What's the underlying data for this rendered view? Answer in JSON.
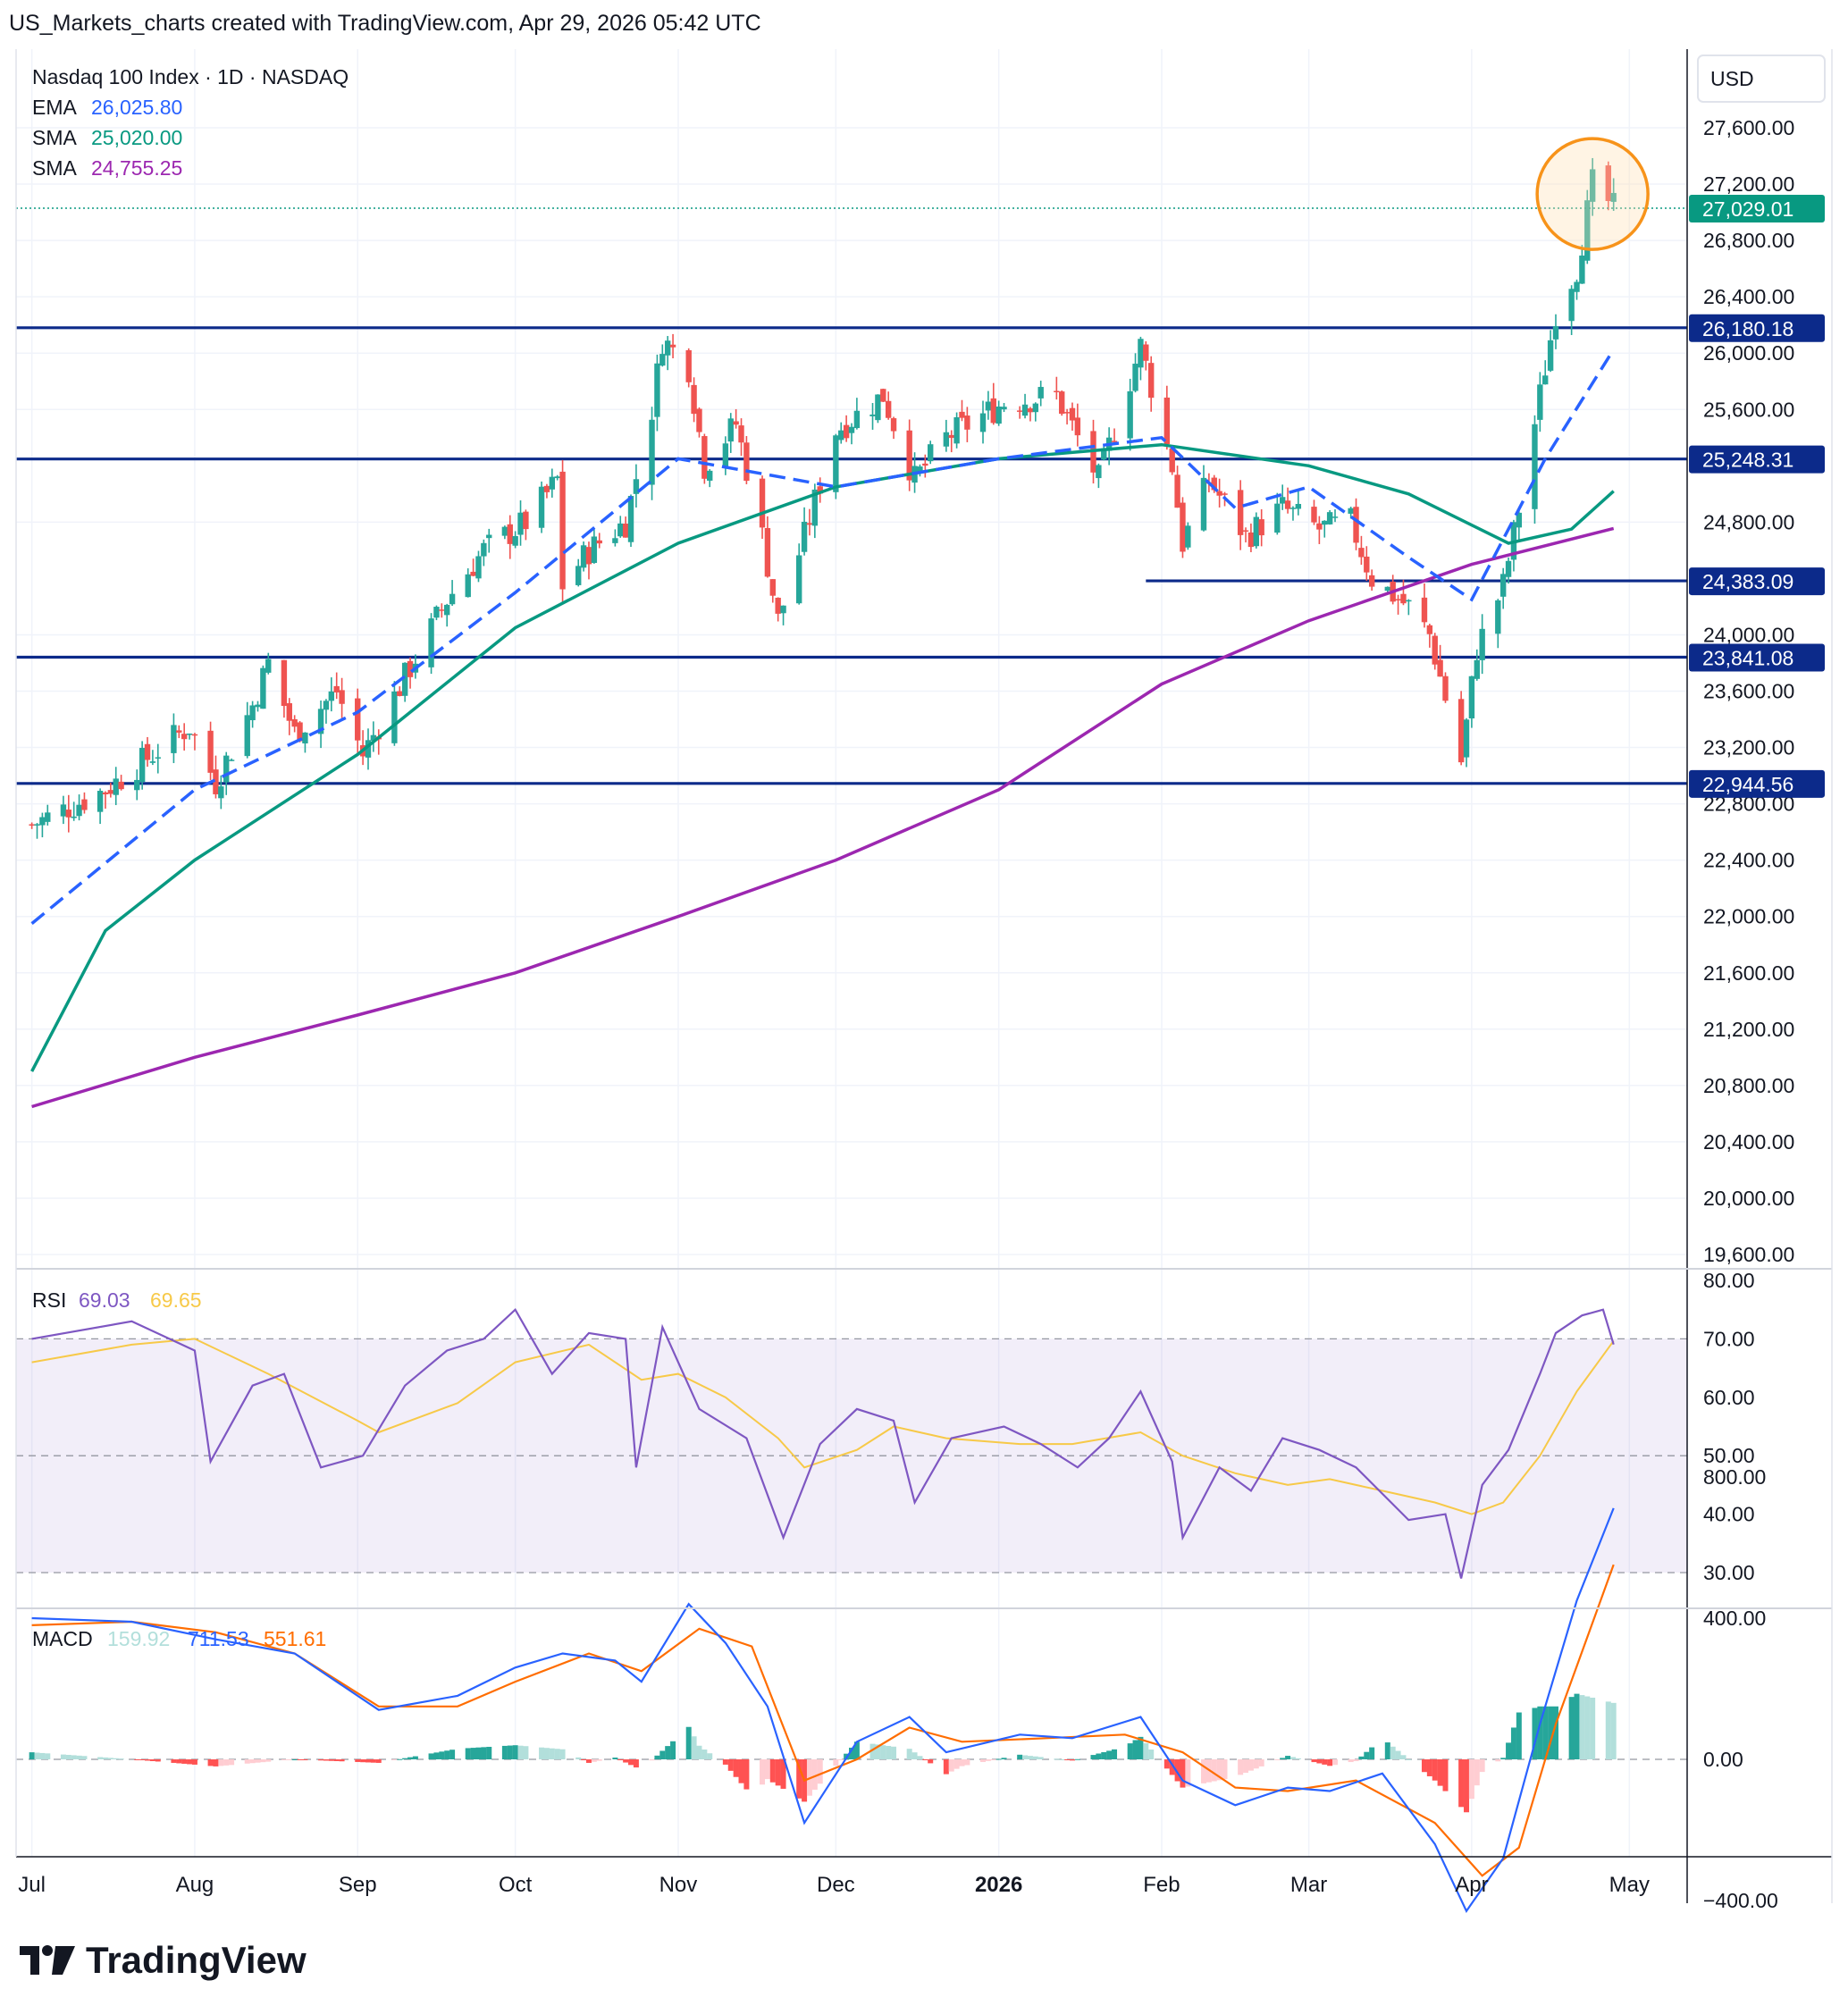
{
  "header": "US_Markets_charts created with TradingView.com, Apr 29, 2026 05:42 UTC",
  "footer": {
    "brand": "TradingView",
    "logo_icon": "tradingview-logo-icon"
  },
  "legend": {
    "title": "Nasdaq 100 Index · 1D · NASDAQ",
    "ema": {
      "label": "EMA",
      "value": "26,025.80",
      "color": "#2962ff"
    },
    "sma1": {
      "label": "SMA",
      "value": "25,020.00",
      "color": "#089981"
    },
    "sma2": {
      "label": "SMA",
      "value": "24,755.25",
      "color": "#9c27b0"
    }
  },
  "currency": "USD",
  "colors": {
    "up": "#26a69a",
    "down": "#ef5350",
    "level": "#0c2a8a",
    "circle": "#f7931a",
    "rsi": "#7e57c2",
    "rsi_ma": "#f7c948",
    "macd": "#2962ff",
    "signal": "#ff6d00"
  },
  "chart_data": [
    {
      "type": "candlestick",
      "title": "Nasdaq 100 Index · 1D · NASDAQ",
      "ylim": [
        19400,
        28000
      ],
      "yticks": [
        "27,600.00",
        "27,200.00",
        "26,800.00",
        "26,400.00",
        "26,000.00",
        "25,600.00",
        "24,800.00",
        "24,000.00",
        "23,600.00",
        "23,200.00",
        "22,800.00",
        "22,400.00",
        "22,000.00",
        "21,600.00",
        "21,200.00",
        "20,800.00",
        "20,400.00",
        "20,000.00",
        "19,600.00"
      ],
      "x_labels": [
        "Jul",
        "Aug",
        "Sep",
        "Oct",
        "Nov",
        "Dec",
        "2026",
        "Feb",
        "Mar",
        "Apr",
        "May"
      ],
      "last_price": {
        "value": 27029.01,
        "label": "27,029.01"
      },
      "levels": [
        {
          "value": 26180.18,
          "label": "26,180.18"
        },
        {
          "value": 25248.31,
          "label": "25,248.31"
        },
        {
          "value": 24383.09,
          "label": "24,383.09",
          "partial": true
        },
        {
          "value": 23841.08,
          "label": "23,841.08"
        },
        {
          "value": 22944.56,
          "label": "22,944.56"
        }
      ],
      "close_path": [
        [
          "2025-07-01",
          22650
        ],
        [
          "2025-07-15",
          22900
        ],
        [
          "2025-07-31",
          23350
        ],
        [
          "2025-08-05",
          22950
        ],
        [
          "2025-08-12",
          23500
        ],
        [
          "2025-08-15",
          23800
        ],
        [
          "2025-08-20",
          23300
        ],
        [
          "2025-08-28",
          23600
        ],
        [
          "2025-09-02",
          23150
        ],
        [
          "2025-09-10",
          23700
        ],
        [
          "2025-09-18",
          24250
        ],
        [
          "2025-09-25",
          24600
        ],
        [
          "2025-10-03",
          24800
        ],
        [
          "2025-10-09",
          25100
        ],
        [
          "2025-10-10",
          24350
        ],
        [
          "2025-10-15",
          24600
        ],
        [
          "2025-10-22",
          24800
        ],
        [
          "2025-10-27",
          25600
        ],
        [
          "2025-10-29",
          26100
        ],
        [
          "2025-11-03",
          25900
        ],
        [
          "2025-11-06",
          25200
        ],
        [
          "2025-11-12",
          25500
        ],
        [
          "2025-11-17",
          24700
        ],
        [
          "2025-11-20",
          24100
        ],
        [
          "2025-11-25",
          24700
        ],
        [
          "2025-12-01",
          25450
        ],
        [
          "2025-12-10",
          25700
        ],
        [
          "2025-12-16",
          25100
        ],
        [
          "2025-12-22",
          25400
        ],
        [
          "2026-01-02",
          25650
        ],
        [
          "2026-01-12",
          25700
        ],
        [
          "2026-01-20",
          25100
        ],
        [
          "2026-01-28",
          26050
        ],
        [
          "2026-02-03",
          25200
        ],
        [
          "2026-02-05",
          24650
        ],
        [
          "2026-02-10",
          25100
        ],
        [
          "2026-02-17",
          24700
        ],
        [
          "2026-02-24",
          24900
        ],
        [
          "2026-03-03",
          24750
        ],
        [
          "2026-03-09",
          24800
        ],
        [
          "2026-03-13",
          24400
        ],
        [
          "2026-03-20",
          24200
        ],
        [
          "2026-03-24",
          24000
        ],
        [
          "2026-03-30",
          23100
        ],
        [
          "2026-04-02",
          23900
        ],
        [
          "2026-04-07",
          24350
        ],
        [
          "2026-04-10",
          24900
        ],
        [
          "2026-04-14",
          25700
        ],
        [
          "2026-04-17",
          26300
        ],
        [
          "2026-04-21",
          26600
        ],
        [
          "2026-04-24",
          27200
        ],
        [
          "2026-04-28",
          27029
        ]
      ],
      "ema_path": [
        [
          "2025-07-01",
          21950
        ],
        [
          "2025-08-01",
          22900
        ],
        [
          "2025-09-01",
          23450
        ],
        [
          "2025-10-01",
          24300
        ],
        [
          "2025-11-01",
          25250
        ],
        [
          "2025-12-01",
          25050
        ],
        [
          "2026-01-01",
          25250
        ],
        [
          "2026-02-01",
          25400
        ],
        [
          "2026-02-15",
          24900
        ],
        [
          "2026-03-01",
          25050
        ],
        [
          "2026-03-20",
          24550
        ],
        [
          "2026-04-01",
          24250
        ],
        [
          "2026-04-15",
          25250
        ],
        [
          "2026-04-28",
          26026
        ]
      ],
      "sma1_path": [
        [
          "2025-07-01",
          20900
        ],
        [
          "2025-07-15",
          21900
        ],
        [
          "2025-08-01",
          22400
        ],
        [
          "2025-09-01",
          23150
        ],
        [
          "2025-10-01",
          24050
        ],
        [
          "2025-11-01",
          24650
        ],
        [
          "2025-12-01",
          25050
        ],
        [
          "2026-01-01",
          25250
        ],
        [
          "2026-02-01",
          25350
        ],
        [
          "2026-03-01",
          25200
        ],
        [
          "2026-03-20",
          25000
        ],
        [
          "2026-04-08",
          24650
        ],
        [
          "2026-04-20",
          24750
        ],
        [
          "2026-04-28",
          25020
        ]
      ],
      "sma2_path": [
        [
          "2025-07-01",
          20650
        ],
        [
          "2025-08-01",
          21000
        ],
        [
          "2025-09-01",
          21300
        ],
        [
          "2025-10-01",
          21600
        ],
        [
          "2025-11-01",
          22000
        ],
        [
          "2025-12-01",
          22400
        ],
        [
          "2026-01-01",
          22900
        ],
        [
          "2026-02-01",
          23650
        ],
        [
          "2026-03-01",
          24100
        ],
        [
          "2026-04-01",
          24500
        ],
        [
          "2026-04-28",
          24755
        ]
      ]
    },
    {
      "type": "line",
      "title": "RSI",
      "series_values": {
        "rsi": "69.03",
        "rsi_ma": "69.65"
      },
      "ylim": [
        28,
        81
      ],
      "yticks": [
        "80.00",
        "70.00",
        "60.00",
        "50.00",
        "40.00",
        "30.00"
      ],
      "bands": {
        "upper": 70,
        "middle": 50,
        "lower": 30
      },
      "rsi_path": [
        [
          "2025-07-01",
          70
        ],
        [
          "2025-07-20",
          73
        ],
        [
          "2025-08-01",
          68
        ],
        [
          "2025-08-04",
          49
        ],
        [
          "2025-08-12",
          62
        ],
        [
          "2025-08-18",
          64
        ],
        [
          "2025-08-25",
          48
        ],
        [
          "2025-09-02",
          50
        ],
        [
          "2025-09-10",
          62
        ],
        [
          "2025-09-18",
          68
        ],
        [
          "2025-09-25",
          70
        ],
        [
          "2025-10-01",
          75
        ],
        [
          "2025-10-08",
          64
        ],
        [
          "2025-10-15",
          71
        ],
        [
          "2025-10-22",
          70
        ],
        [
          "2025-10-24",
          48
        ],
        [
          "2025-10-29",
          72
        ],
        [
          "2025-11-05",
          58
        ],
        [
          "2025-11-14",
          53
        ],
        [
          "2025-11-21",
          36
        ],
        [
          "2025-11-28",
          52
        ],
        [
          "2025-12-05",
          58
        ],
        [
          "2025-12-12",
          56
        ],
        [
          "2025-12-16",
          42
        ],
        [
          "2025-12-23",
          53
        ],
        [
          "2026-01-02",
          55
        ],
        [
          "2026-01-09",
          52
        ],
        [
          "2026-01-16",
          48
        ],
        [
          "2026-01-22",
          53
        ],
        [
          "2026-01-28",
          61
        ],
        [
          "2026-02-03",
          49
        ],
        [
          "2026-02-05",
          36
        ],
        [
          "2026-02-12",
          48
        ],
        [
          "2026-02-18",
          44
        ],
        [
          "2026-02-24",
          53
        ],
        [
          "2026-03-03",
          51
        ],
        [
          "2026-03-10",
          48
        ],
        [
          "2026-03-20",
          39
        ],
        [
          "2026-03-27",
          40
        ],
        [
          "2026-03-30",
          29
        ],
        [
          "2026-04-03",
          45
        ],
        [
          "2026-04-08",
          51
        ],
        [
          "2026-04-14",
          64
        ],
        [
          "2026-04-17",
          71
        ],
        [
          "2026-04-22",
          74
        ],
        [
          "2026-04-26",
          75
        ],
        [
          "2026-04-28",
          69.03
        ]
      ],
      "rsi_ma_path": [
        [
          "2025-07-01",
          66
        ],
        [
          "2025-07-20",
          69
        ],
        [
          "2025-08-01",
          70
        ],
        [
          "2025-08-15",
          64
        ],
        [
          "2025-09-01",
          56
        ],
        [
          "2025-09-05",
          54
        ],
        [
          "2025-09-20",
          59
        ],
        [
          "2025-10-01",
          66
        ],
        [
          "2025-10-15",
          69
        ],
        [
          "2025-10-25",
          63
        ],
        [
          "2025-11-01",
          64
        ],
        [
          "2025-11-10",
          60
        ],
        [
          "2025-11-20",
          53
        ],
        [
          "2025-11-25",
          48
        ],
        [
          "2025-12-05",
          51
        ],
        [
          "2025-12-12",
          55
        ],
        [
          "2025-12-22",
          53
        ],
        [
          "2026-01-05",
          52
        ],
        [
          "2026-01-15",
          52
        ],
        [
          "2026-01-28",
          54
        ],
        [
          "2026-02-05",
          50
        ],
        [
          "2026-02-15",
          47
        ],
        [
          "2026-02-25",
          45
        ],
        [
          "2026-03-05",
          46
        ],
        [
          "2026-03-15",
          44
        ],
        [
          "2026-03-25",
          42
        ],
        [
          "2026-04-01",
          40
        ],
        [
          "2026-04-07",
          42
        ],
        [
          "2026-04-14",
          50
        ],
        [
          "2026-04-21",
          61
        ],
        [
          "2026-04-28",
          69.65
        ]
      ]
    },
    {
      "type": "line",
      "title": "MACD",
      "series_values": {
        "histogram": "159.92",
        "macd": "711.53",
        "signal": "551.61"
      },
      "ylim": [
        -500,
        820
      ],
      "yticks": [
        "800.00",
        "400.00",
        "0.00",
        "−400.00"
      ],
      "macd_path": [
        [
          "2025-07-01",
          400
        ],
        [
          "2025-07-20",
          390
        ],
        [
          "2025-08-05",
          340
        ],
        [
          "2025-08-20",
          300
        ],
        [
          "2025-09-05",
          140
        ],
        [
          "2025-09-20",
          180
        ],
        [
          "2025-10-01",
          260
        ],
        [
          "2025-10-10",
          300
        ],
        [
          "2025-10-20",
          280
        ],
        [
          "2025-10-25",
          220
        ],
        [
          "2025-11-03",
          440
        ],
        [
          "2025-11-10",
          330
        ],
        [
          "2025-11-18",
          150
        ],
        [
          "2025-11-25",
          -180
        ],
        [
          "2025-12-05",
          50
        ],
        [
          "2025-12-15",
          120
        ],
        [
          "2025-12-22",
          20
        ],
        [
          "2026-01-05",
          70
        ],
        [
          "2026-01-15",
          60
        ],
        [
          "2026-01-28",
          120
        ],
        [
          "2026-02-05",
          -60
        ],
        [
          "2026-02-15",
          -130
        ],
        [
          "2026-02-25",
          -80
        ],
        [
          "2026-03-05",
          -90
        ],
        [
          "2026-03-15",
          -40
        ],
        [
          "2026-03-25",
          -240
        ],
        [
          "2026-03-31",
          -430
        ],
        [
          "2026-04-07",
          -280
        ],
        [
          "2026-04-14",
          100
        ],
        [
          "2026-04-21",
          450
        ],
        [
          "2026-04-28",
          711.53
        ]
      ],
      "signal_path": [
        [
          "2025-07-01",
          380
        ],
        [
          "2025-07-20",
          390
        ],
        [
          "2025-08-05",
          360
        ],
        [
          "2025-08-20",
          300
        ],
        [
          "2025-09-05",
          150
        ],
        [
          "2025-09-20",
          150
        ],
        [
          "2025-10-01",
          220
        ],
        [
          "2025-10-15",
          300
        ],
        [
          "2025-10-25",
          250
        ],
        [
          "2025-11-05",
          370
        ],
        [
          "2025-11-15",
          320
        ],
        [
          "2025-11-25",
          -60
        ],
        [
          "2025-12-05",
          0
        ],
        [
          "2025-12-15",
          90
        ],
        [
          "2025-12-25",
          50
        ],
        [
          "2026-01-10",
          60
        ],
        [
          "2026-01-25",
          70
        ],
        [
          "2026-02-05",
          20
        ],
        [
          "2026-02-15",
          -80
        ],
        [
          "2026-02-25",
          -90
        ],
        [
          "2026-03-10",
          -60
        ],
        [
          "2026-03-25",
          -180
        ],
        [
          "2026-04-03",
          -330
        ],
        [
          "2026-04-10",
          -250
        ],
        [
          "2026-04-17",
          100
        ],
        [
          "2026-04-28",
          551.61
        ]
      ]
    }
  ]
}
